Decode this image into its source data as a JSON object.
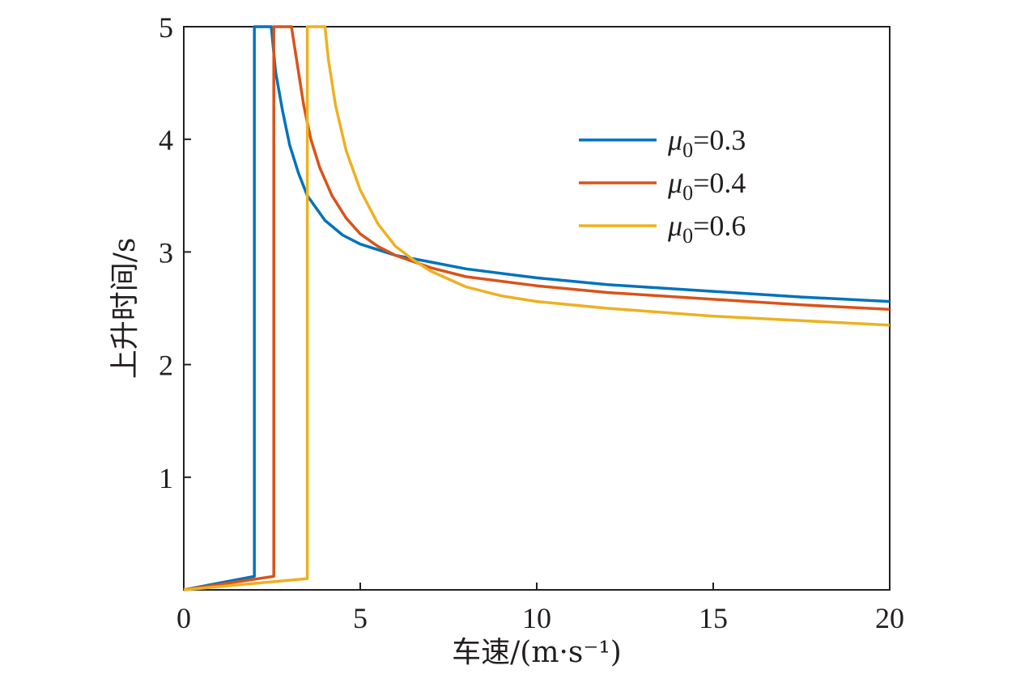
{
  "chart_data": {
    "type": "line",
    "xlabel": "车速/(m·s⁻¹)",
    "ylabel": "上升时间/s",
    "xlim": [
      0,
      20
    ],
    "ylim": [
      0,
      5
    ],
    "xticks": [
      "0",
      "5",
      "10",
      "15",
      "20"
    ],
    "yticks": [
      "1",
      "2",
      "3",
      "4",
      "5"
    ],
    "grid": false,
    "legend_position": "top-right",
    "series": [
      {
        "name": "μ0=0.3",
        "legend_symbol": "μ",
        "legend_subscript": "0",
        "legend_value": "=0.3",
        "color": "#0072bd",
        "points": [
          [
            0.0,
            0.0
          ],
          [
            2.0,
            0.12
          ],
          [
            2.0,
            5.0
          ],
          [
            2.48,
            5.0
          ],
          [
            2.6,
            4.6
          ],
          [
            2.8,
            4.25
          ],
          [
            3.0,
            3.95
          ],
          [
            3.25,
            3.7
          ],
          [
            3.5,
            3.5
          ],
          [
            4.0,
            3.28
          ],
          [
            4.5,
            3.15
          ],
          [
            5.0,
            3.07
          ],
          [
            6.0,
            2.97
          ],
          [
            7.0,
            2.91
          ],
          [
            8.0,
            2.85
          ],
          [
            10.0,
            2.77
          ],
          [
            12.0,
            2.71
          ],
          [
            15.0,
            2.65
          ],
          [
            17.5,
            2.6
          ],
          [
            20.0,
            2.56
          ]
        ]
      },
      {
        "name": "μ0=0.4",
        "legend_symbol": "μ",
        "legend_subscript": "0",
        "legend_value": "=0.4",
        "color": "#d95319",
        "points": [
          [
            0.0,
            0.0
          ],
          [
            2.55,
            0.12
          ],
          [
            2.55,
            5.0
          ],
          [
            3.05,
            5.0
          ],
          [
            3.2,
            4.7
          ],
          [
            3.4,
            4.3
          ],
          [
            3.6,
            4.0
          ],
          [
            3.85,
            3.75
          ],
          [
            4.2,
            3.5
          ],
          [
            4.6,
            3.3
          ],
          [
            5.0,
            3.16
          ],
          [
            5.5,
            3.05
          ],
          [
            6.0,
            2.97
          ],
          [
            7.0,
            2.86
          ],
          [
            8.0,
            2.78
          ],
          [
            10.0,
            2.7
          ],
          [
            12.0,
            2.64
          ],
          [
            15.0,
            2.58
          ],
          [
            17.5,
            2.53
          ],
          [
            20.0,
            2.49
          ]
        ]
      },
      {
        "name": "μ0=0.6",
        "legend_symbol": "μ",
        "legend_subscript": "0",
        "legend_value": "=0.6",
        "color": "#edb120",
        "points": [
          [
            0.0,
            0.0
          ],
          [
            3.5,
            0.1
          ],
          [
            3.5,
            5.0
          ],
          [
            4.0,
            5.0
          ],
          [
            4.1,
            4.7
          ],
          [
            4.3,
            4.3
          ],
          [
            4.6,
            3.9
          ],
          [
            5.0,
            3.55
          ],
          [
            5.5,
            3.25
          ],
          [
            6.0,
            3.05
          ],
          [
            6.5,
            2.93
          ],
          [
            7.0,
            2.83
          ],
          [
            8.0,
            2.69
          ],
          [
            9.0,
            2.61
          ],
          [
            10.0,
            2.56
          ],
          [
            12.0,
            2.5
          ],
          [
            15.0,
            2.43
          ],
          [
            17.5,
            2.39
          ],
          [
            20.0,
            2.35
          ]
        ]
      }
    ]
  }
}
